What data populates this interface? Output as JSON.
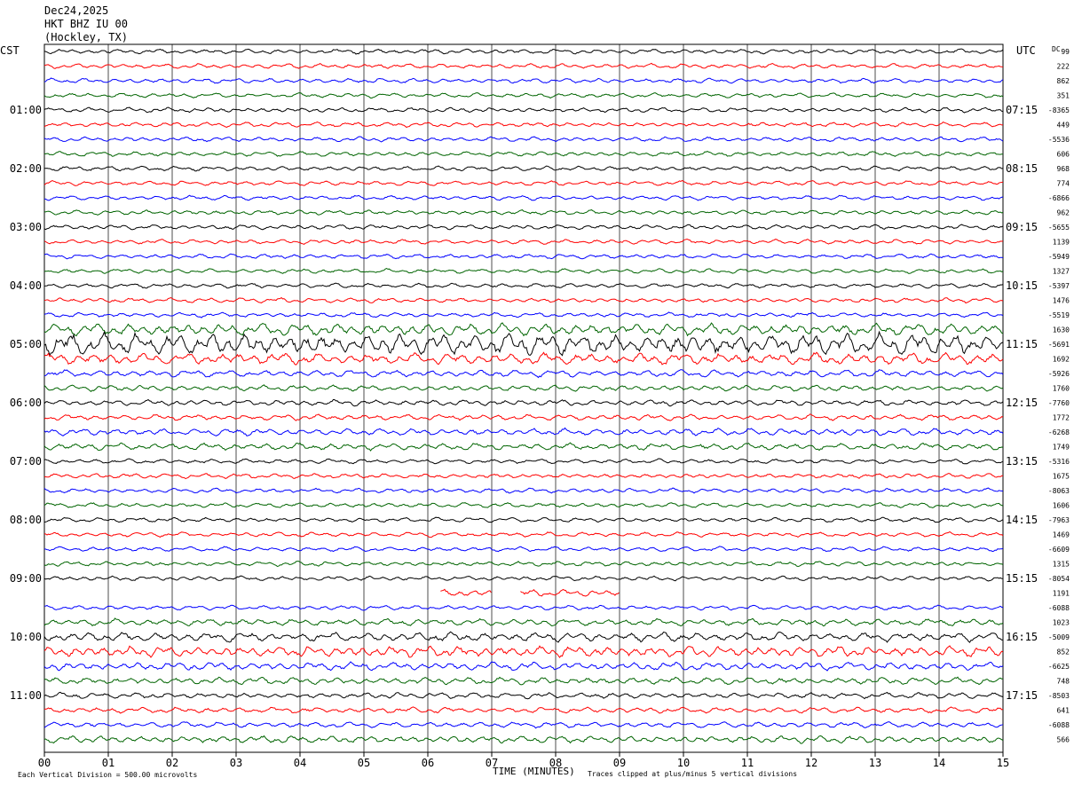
{
  "header": {
    "date": "Dec24,2025",
    "station": "HKT BHZ IU 00",
    "location": "(Hockley, TX)"
  },
  "left_zone": "CST",
  "right_zone": "UTC",
  "dc_label": "DC",
  "footer": {
    "scale_note": "Each Vertical Division =  500.00 microvolts",
    "xlabel": "TIME (MINUTES)",
    "clip_note": "Traces clipped at plus/minus 5 vertical divisions"
  },
  "colors": {
    "trace_cycle": [
      "#000000",
      "#ff0000",
      "#0000ff",
      "#006400"
    ],
    "grid": "#000000",
    "background": "#ffffff"
  },
  "chart_data": {
    "type": "line",
    "xlabel": "TIME (MINUTES)",
    "xlim": [
      0,
      15
    ],
    "x_ticks": [
      "00",
      "01",
      "02",
      "03",
      "04",
      "05",
      "06",
      "07",
      "08",
      "09",
      "10",
      "11",
      "12",
      "13",
      "14",
      "15"
    ],
    "left_hour_labels": [
      "01:00",
      "02:00",
      "03:00",
      "04:00",
      "05:00",
      "06:00",
      "07:00",
      "08:00",
      "09:00",
      "10:00",
      "11:00"
    ],
    "right_hour_labels": [
      "07:15",
      "08:15",
      "09:15",
      "10:15",
      "11:15",
      "12:15",
      "13:15",
      "14:15",
      "15:15",
      "16:15",
      "17:15"
    ],
    "row_count": 48,
    "dc_offsets": [
      "99",
      "222",
      "862",
      "351",
      "-8365",
      "449",
      "-5536",
      "606",
      "968",
      "774",
      "-6866",
      "962",
      "-5655",
      "1139",
      "-5949",
      "1327",
      "-5397",
      "1476",
      "-5519",
      "1630",
      "-5691",
      "1692",
      "-5926",
      "1760",
      "-7760",
      "1772",
      "-6268",
      "1749",
      "-5316",
      "1675",
      "-8063",
      "1606",
      "-7963",
      "1469",
      "-6609",
      "1315",
      "-8054",
      "1191",
      "-6088",
      "1023",
      "-5009",
      "852",
      "-6625",
      "748",
      "-8503",
      "641",
      "-6088",
      "566"
    ],
    "amplitude_profile": [
      2,
      2,
      2,
      2,
      2,
      2,
      2,
      2,
      2,
      2,
      2,
      2,
      2,
      2,
      2,
      2,
      2,
      2,
      2,
      5,
      9,
      5,
      3,
      2.5,
      2.5,
      2.5,
      3,
      3,
      2,
      2,
      2,
      2,
      2,
      2,
      2,
      2,
      2,
      3,
      2,
      3,
      4,
      4.5,
      3.5,
      3,
      2.5,
      2.5,
      2.5,
      3
    ],
    "gaps": [
      {
        "row": 37,
        "segments_minutes": [
          [
            6.2,
            7.0
          ],
          [
            7.45,
            9.0
          ]
        ]
      }
    ],
    "scale_microvolts_per_division": 500.0,
    "clip_divisions": 5
  }
}
